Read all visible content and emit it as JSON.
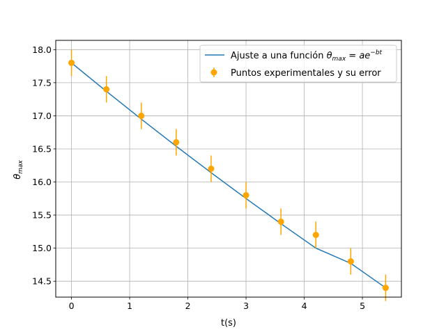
{
  "chart_data": {
    "type": "scatter",
    "xlabel": "t(s)",
    "ylabel": "θ",
    "ylabel_sub": "max",
    "xlim": [
      -0.27,
      5.67
    ],
    "ylim": [
      14.26,
      18.14
    ],
    "xticks": [
      0,
      1,
      2,
      3,
      4,
      5
    ],
    "yticks": [
      14.5,
      15.0,
      15.5,
      16.0,
      16.5,
      17.0,
      17.5,
      18.0
    ],
    "grid": true,
    "legend_position": "upper-right",
    "series": [
      {
        "name": "Ajuste a una función θmax = ae^(-bt)",
        "legend_prefix": "Ajuste a una función ",
        "legend_math_theta": "θ",
        "legend_math_sub": "max",
        "legend_math_eq": " = ",
        "legend_math_a": "ae",
        "legend_math_exp": "−bt",
        "kind": "line",
        "color": "#1f77b4",
        "x": [
          0,
          0.6,
          1.2,
          1.8,
          2.4,
          3.0,
          3.6,
          4.2,
          4.8,
          5.4
        ],
        "y": [
          17.8,
          17.37,
          16.95,
          16.54,
          16.14,
          15.75,
          15.37,
          15.0,
          14.77,
          14.4
        ]
      },
      {
        "name": "Puntos experimentales y su error",
        "kind": "errorbar",
        "color": "#ffa500",
        "x": [
          0,
          0.6,
          1.2,
          1.8,
          2.4,
          3.0,
          3.6,
          4.2,
          4.8,
          5.4
        ],
        "y": [
          17.8,
          17.4,
          17.0,
          16.6,
          16.2,
          15.8,
          15.4,
          15.2,
          14.8,
          14.4
        ],
        "yerr": 0.2
      }
    ]
  }
}
